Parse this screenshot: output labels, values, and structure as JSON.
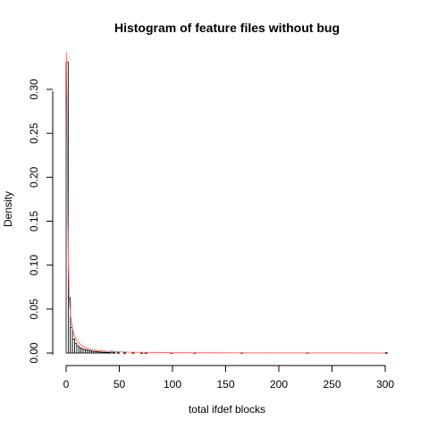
{
  "chart_data": {
    "type": "bar",
    "title": "Histogram of feature files without bug",
    "xlabel": "total ifdef blocks",
    "ylabel": "Density",
    "xlim": [
      0,
      305
    ],
    "ylim": [
      0,
      0.34
    ],
    "x_ticks": [
      "0",
      "50",
      "100",
      "150",
      "200",
      "250",
      "300"
    ],
    "y_ticks": [
      "0.00",
      "0.05",
      "0.10",
      "0.15",
      "0.20",
      "0.25",
      "0.30"
    ],
    "bin_width": 2,
    "bins": [
      {
        "x0": 0,
        "x1": 2,
        "density": 0.331
      },
      {
        "x0": 2,
        "x1": 4,
        "density": 0.063
      },
      {
        "x0": 4,
        "x1": 6,
        "density": 0.029
      },
      {
        "x0": 6,
        "x1": 8,
        "density": 0.016
      },
      {
        "x0": 8,
        "x1": 10,
        "density": 0.011
      },
      {
        "x0": 10,
        "x1": 12,
        "density": 0.008
      },
      {
        "x0": 12,
        "x1": 14,
        "density": 0.006
      },
      {
        "x0": 14,
        "x1": 16,
        "density": 0.005
      },
      {
        "x0": 16,
        "x1": 18,
        "density": 0.004
      },
      {
        "x0": 18,
        "x1": 20,
        "density": 0.0035
      },
      {
        "x0": 20,
        "x1": 22,
        "density": 0.003
      },
      {
        "x0": 22,
        "x1": 24,
        "density": 0.0025
      },
      {
        "x0": 24,
        "x1": 26,
        "density": 0.002
      },
      {
        "x0": 26,
        "x1": 28,
        "density": 0.0018
      },
      {
        "x0": 28,
        "x1": 30,
        "density": 0.0015
      },
      {
        "x0": 30,
        "x1": 32,
        "density": 0.0012
      },
      {
        "x0": 32,
        "x1": 34,
        "density": 0.001
      },
      {
        "x0": 34,
        "x1": 36,
        "density": 0.0009
      },
      {
        "x0": 36,
        "x1": 38,
        "density": 0.0008
      },
      {
        "x0": 38,
        "x1": 40,
        "density": 0.0006
      },
      {
        "x0": 40,
        "x1": 42,
        "density": 0.0005
      },
      {
        "x0": 42,
        "x1": 44,
        "density": 0.002
      },
      {
        "x0": 44,
        "x1": 46,
        "density": 0.0005
      },
      {
        "x0": 48,
        "x1": 50,
        "density": 0.0004
      },
      {
        "x0": 54,
        "x1": 56,
        "density": 0.0003
      },
      {
        "x0": 62,
        "x1": 64,
        "density": 0.0004
      },
      {
        "x0": 70,
        "x1": 72,
        "density": 0.0003
      },
      {
        "x0": 74,
        "x1": 76,
        "density": 0.0003
      },
      {
        "x0": 98,
        "x1": 100,
        "density": 0.0003
      },
      {
        "x0": 120,
        "x1": 122,
        "density": 0.0003
      },
      {
        "x0": 164,
        "x1": 166,
        "density": 0.0003
      },
      {
        "x0": 226,
        "x1": 228,
        "density": 0.0003
      },
      {
        "x0": 300,
        "x1": 302,
        "density": 0.0003
      }
    ],
    "density_curve": {
      "color": "#ff6b6b",
      "x": [
        0.3,
        1,
        1.5,
        2,
        3,
        4,
        5,
        7,
        10,
        15,
        20,
        30,
        40,
        60,
        100,
        150,
        200,
        300
      ],
      "y": [
        0.342,
        0.27,
        0.15,
        0.11,
        0.06,
        0.045,
        0.035,
        0.022,
        0.014,
        0.008,
        0.005,
        0.0028,
        0.0018,
        0.0009,
        0.0004,
        0.0002,
        0.0001,
        5e-05
      ]
    },
    "grid": false,
    "bar_fill": "#ffffff",
    "bar_stroke": "#000000"
  }
}
